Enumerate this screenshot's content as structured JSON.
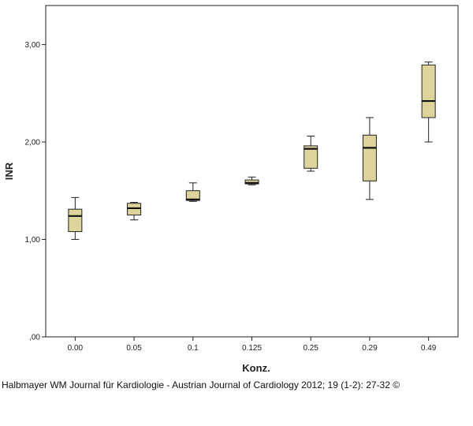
{
  "chart_data": {
    "type": "boxplot",
    "xlabel": "Konz.",
    "ylabel": "INR",
    "ylim": [
      0,
      3.4
    ],
    "yticks": [
      0,
      1,
      2,
      3
    ],
    "ytick_labels": [
      ",00",
      "1,00",
      "2,00",
      "3,00"
    ],
    "categories": [
      "0.00",
      "0.05",
      "0.1",
      "0.125",
      "0.25",
      "0.29",
      "0.49"
    ],
    "boxes": [
      {
        "min": 1.0,
        "q1": 1.08,
        "median": 1.24,
        "q3": 1.31,
        "max": 1.43
      },
      {
        "min": 1.2,
        "q1": 1.25,
        "median": 1.32,
        "q3": 1.37,
        "max": 1.38
      },
      {
        "min": 1.39,
        "q1": 1.4,
        "median": 1.41,
        "q3": 1.5,
        "max": 1.58
      },
      {
        "min": 1.56,
        "q1": 1.57,
        "median": 1.58,
        "q3": 1.61,
        "max": 1.64
      },
      {
        "min": 1.7,
        "q1": 1.73,
        "median": 1.93,
        "q3": 1.96,
        "max": 2.06
      },
      {
        "min": 1.41,
        "q1": 1.6,
        "median": 1.94,
        "q3": 2.07,
        "max": 2.25
      },
      {
        "min": 2.0,
        "q1": 2.25,
        "median": 2.42,
        "q3": 2.79,
        "max": 2.82
      }
    ],
    "box_color": "#dcd49a",
    "grid": false
  },
  "caption": "Halbmayer WM Journal für Kardiologie - Austrian Journal of Cardiology 2012; 19 (1-2): 27-32 ©"
}
